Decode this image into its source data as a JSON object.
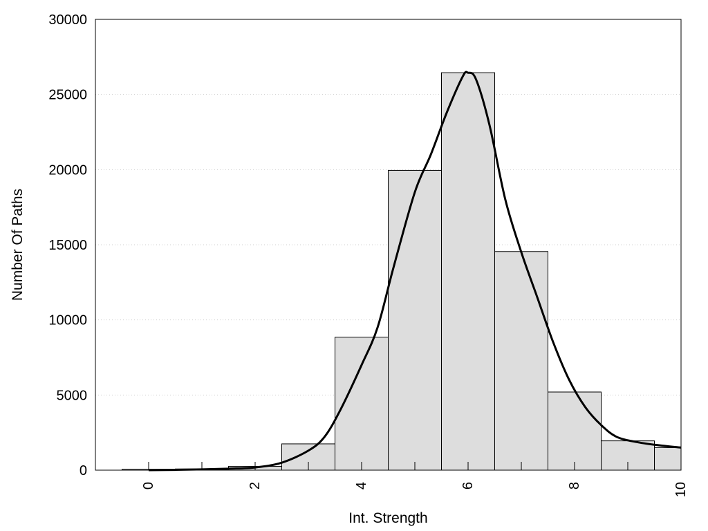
{
  "chart_data": {
    "type": "bar",
    "xlabel": "Int. Strength",
    "ylabel": "Number Of Paths",
    "xlim": [
      -1,
      10
    ],
    "ylim": [
      0,
      30000
    ],
    "x_ticks": [
      0,
      2,
      4,
      6,
      8,
      10
    ],
    "y_ticks": [
      0,
      5000,
      10000,
      15000,
      20000,
      25000,
      30000
    ],
    "grid": "horizontal-dotted",
    "bar_color": "#dddddd",
    "bins": [
      {
        "x": 0,
        "value": 60
      },
      {
        "x": 1,
        "value": 80
      },
      {
        "x": 2,
        "value": 250
      },
      {
        "x": 3,
        "value": 1750
      },
      {
        "x": 4,
        "value": 8850
      },
      {
        "x": 5,
        "value": 19950
      },
      {
        "x": 6,
        "value": 26450
      },
      {
        "x": 7,
        "value": 14550
      },
      {
        "x": 8,
        "value": 5200
      },
      {
        "x": 9,
        "value": 1950
      },
      {
        "x": 9.75,
        "width": 0.5,
        "value": 1500
      }
    ],
    "curve": {
      "color": "#000000",
      "points": [
        [
          0,
          0
        ],
        [
          0.5,
          20
        ],
        [
          1,
          50
        ],
        [
          1.5,
          100
        ],
        [
          2,
          180
        ],
        [
          2.5,
          500
        ],
        [
          3,
          1300
        ],
        [
          3.3,
          2200
        ],
        [
          3.6,
          4000
        ],
        [
          4,
          7000
        ],
        [
          4.3,
          9500
        ],
        [
          4.6,
          13500
        ],
        [
          5,
          18500
        ],
        [
          5.3,
          21000
        ],
        [
          5.6,
          23800
        ],
        [
          5.9,
          26200
        ],
        [
          6,
          26450
        ],
        [
          6.15,
          26000
        ],
        [
          6.4,
          23000
        ],
        [
          6.7,
          18000
        ],
        [
          7,
          14500
        ],
        [
          7.3,
          11500
        ],
        [
          7.6,
          8500
        ],
        [
          7.9,
          6000
        ],
        [
          8.2,
          4200
        ],
        [
          8.5,
          3000
        ],
        [
          8.8,
          2200
        ],
        [
          9.2,
          1850
        ],
        [
          9.6,
          1650
        ],
        [
          10,
          1500
        ]
      ]
    }
  }
}
